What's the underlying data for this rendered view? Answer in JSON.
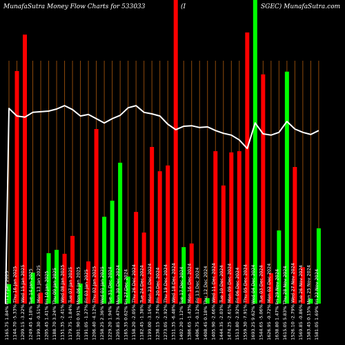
{
  "chart_data": {
    "type": "bar",
    "title_parts": [
      "MunafaSutra  Money Flow  Charts for 533033",
      "(I",
      "SGEC) MunafaSutra.com"
    ],
    "ylim": [
      0,
      100
    ],
    "grid": "vertical",
    "colors": {
      "background": "#000000",
      "grid": "#8f4a0b",
      "line": "#ffffff",
      "up": "#00ff00",
      "down": "#ff0000"
    },
    "x_labels": [
      "1165.75 1.84% Fri 17 Jan 2025",
      "1144.70 -5.33% Thu 16 Jan 2025",
      "1209.15 -3.22% Wed 15 Jan 2025",
      "1249.45 4.18% Tue 14 Jan 2025",
      "1199.30 -0.51% Mon 13 Jan 2025",
      "1205.45 1.41% Fri 10 Jan 2025",
      "1188.70 3.24% Thu 09 Jan 2025",
      "1151.35 -2.41% Wed 08 Jan 2025",
      "1179.75 -1.84% Tue 07 Jan 2025",
      "1201.90 0.91% Mon 06 Jan 2025",
      "1191.05 -1.27% Fri 03 Jan 2025",
      "1206.40 -4.12% Thu 02 Jan 2025",
      "1258.25 2.36% Wed 01 Jan 2025",
      "1229.20 1.94% Tue 31 Dec 2024",
      "1205.85 3.47% Mon 30 Dec 2024",
      "1165.35 0.62% Fri 27 Dec 2024",
      "1158.20 -2.05% Thu 26 Dec 2024",
      "1182.45 -1.38% Tue 24 Dec 2024",
      "1199.00 -3.16% Mon 23 Dec 2024",
      "1238.15 -2.74% Fri 20 Dec 2024",
      "1273.05 -2.92% Thu 19 Dec 2024",
      "1311.35 -6.48% Wed 18 Dec 2024",
      "1402.20 1.12% Tue 17 Dec 2024",
      "1386.65 -1.43% Mon 16 Dec 2024",
      "1406.75 -0.12% Fri 13 Dec 2024",
      "1408.45 0.18% Thu 12 Dec 2024",
      "1405.90 -2.66% Wed 11 Dec 2024",
      "1444.35 -2.03% Tue 10 Dec 2024",
      "1474.25 -2.61% Mon 09 Dec 2024",
      "1513.80 -2.92% Fri 06 Dec 2024",
      "1559.30 -7.91% Thu 05 Dec 2024",
      "1693.25 9.62% Wed 04 Dec 2024",
      "1544.65 -5.06% Tue 03 Dec 2024",
      "1626.95 -0.72% Mon 02 Dec 2024",
      "1638.80 1.47% Fri 29 Nov 2024",
      "1615.05 5.83% Thu 28 Nov 2024",
      "1526.10 -2.79% Wed 27 Nov 2024",
      "1569.85 -0.86% Tue 26 Nov 2024",
      "1583.45 0.15% Mon 25 Nov 2024",
      "1581.05 1.69% Fri 22 Nov 2024"
    ],
    "series": [
      {
        "type": "bar",
        "values": [
          6.4,
          76.6,
          88.6,
          10.2,
          3.6,
          16.6,
          17.7,
          16.4,
          22.3,
          6.6,
          13.9,
          57.5,
          28.6,
          33.9,
          46.4,
          8.9,
          30.2,
          23.4,
          51.6,
          43.6,
          45.5,
          100,
          18.6,
          19.8,
          1.8,
          1.8,
          50.2,
          38.9,
          49.8,
          50.2,
          89.3,
          100,
          75.5,
          10.0,
          24.1,
          76.4,
          45.0,
          12.0,
          1.6,
          24.8
        ],
        "colors": [
          "#00ff00",
          "#ff0000",
          "#ff0000",
          "#00ff00",
          "#ff0000",
          "#00ff00",
          "#00ff00",
          "#ff0000",
          "#ff0000",
          "#00ff00",
          "#ff0000",
          "#ff0000",
          "#00ff00",
          "#00ff00",
          "#00ff00",
          "#00ff00",
          "#ff0000",
          "#ff0000",
          "#ff0000",
          "#ff0000",
          "#ff0000",
          "#ff0000",
          "#00ff00",
          "#ff0000",
          "#ff0000",
          "#00ff00",
          "#ff0000",
          "#ff0000",
          "#ff0000",
          "#ff0000",
          "#ff0000",
          "#00ff00",
          "#ff0000",
          "#ff0000",
          "#00ff00",
          "#00ff00",
          "#ff0000",
          "#ff0000",
          "#00ff00",
          "#00ff00"
        ]
      },
      {
        "type": "line",
        "values": [
          64.3,
          61.8,
          61.4,
          63.0,
          63.2,
          63.4,
          64.1,
          65.2,
          63.9,
          61.8,
          62.3,
          60.9,
          59.5,
          60.9,
          62.0,
          64.5,
          65.2,
          63.0,
          62.5,
          61.8,
          59.1,
          57.3,
          58.4,
          58.6,
          58.0,
          58.2,
          57.0,
          56.1,
          55.5,
          53.9,
          51.1,
          59.5,
          55.9,
          55.5,
          56.4,
          60.0,
          57.5,
          56.4,
          55.7,
          57.0
        ]
      }
    ]
  }
}
